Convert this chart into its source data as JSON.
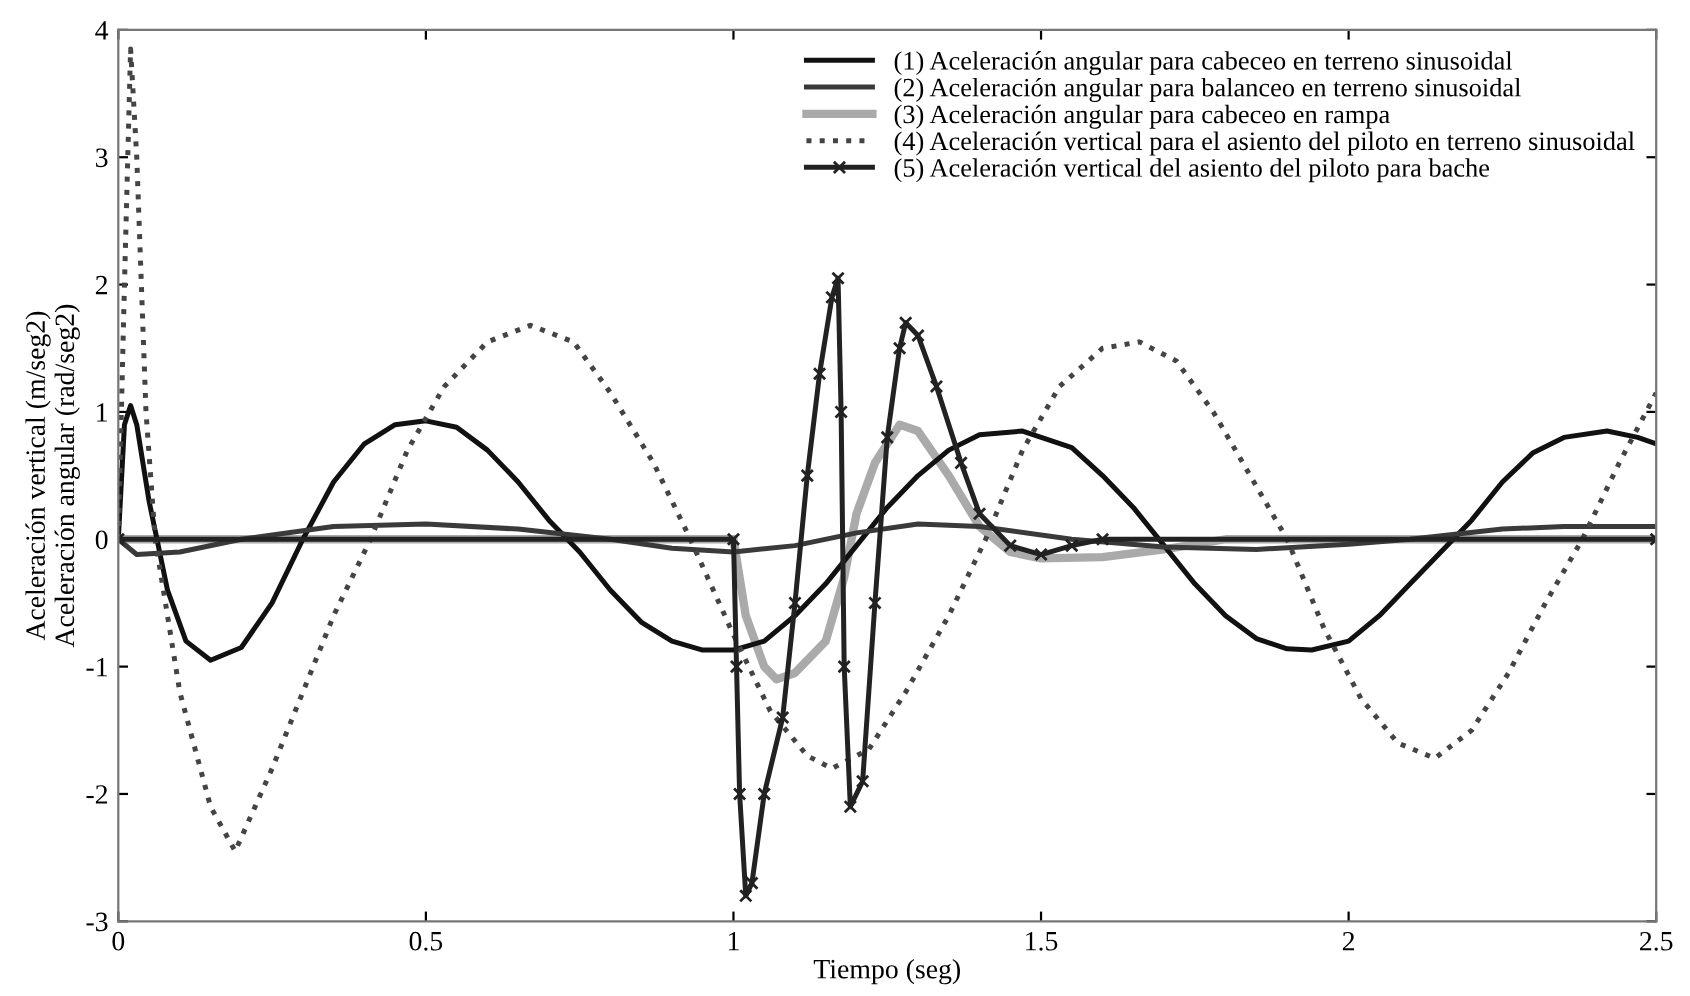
{
  "chart_data": {
    "type": "line",
    "xlabel": "Tiempo (seg)",
    "ylabel": "Aceleración vertical (m/seg2)\nAceleración angular (rad/seg2)",
    "xlim": [
      0,
      2.5
    ],
    "ylim": [
      -3,
      4
    ],
    "xticks": [
      0,
      0.5,
      1,
      1.5,
      2,
      2.5
    ],
    "yticks": [
      -3,
      -2,
      -1,
      0,
      1,
      2,
      3,
      4
    ],
    "grid": false,
    "legend": "top right",
    "series": [
      {
        "name": "(1) Aceleración angular para cabeceo en terreno sinusoidal",
        "color": "#111111",
        "line_style": "solid",
        "marker": "none",
        "x": [
          0,
          0.01,
          0.02,
          0.03,
          0.05,
          0.08,
          0.11,
          0.15,
          0.2,
          0.25,
          0.3,
          0.35,
          0.4,
          0.45,
          0.5,
          0.55,
          0.6,
          0.65,
          0.7,
          0.75,
          0.8,
          0.85,
          0.9,
          0.95,
          1.0,
          1.05,
          1.1,
          1.15,
          1.2,
          1.25,
          1.3,
          1.35,
          1.4,
          1.47,
          1.55,
          1.6,
          1.65,
          1.7,
          1.75,
          1.8,
          1.85,
          1.9,
          1.94,
          2.0,
          2.05,
          2.1,
          2.15,
          2.2,
          2.25,
          2.3,
          2.35,
          2.42,
          2.47,
          2.5
        ],
        "values": [
          0,
          0.9,
          1.05,
          0.9,
          0.3,
          -0.4,
          -0.8,
          -0.95,
          -0.85,
          -0.5,
          0,
          0.45,
          0.75,
          0.9,
          0.93,
          0.88,
          0.7,
          0.45,
          0.15,
          -0.1,
          -0.4,
          -0.65,
          -0.8,
          -0.87,
          -0.87,
          -0.8,
          -0.6,
          -0.35,
          -0.05,
          0.25,
          0.5,
          0.7,
          0.82,
          0.85,
          0.72,
          0.5,
          0.25,
          -0.05,
          -0.35,
          -0.6,
          -0.78,
          -0.86,
          -0.87,
          -0.8,
          -0.6,
          -0.35,
          -0.1,
          0.15,
          0.45,
          0.68,
          0.8,
          0.85,
          0.8,
          0.75
        ]
      },
      {
        "name": "(2) Aceleración angular para balanceo en terreno sinusoidal",
        "color": "#3a3a3a",
        "line_style": "solid",
        "marker": "none",
        "x": [
          0,
          0.03,
          0.1,
          0.2,
          0.35,
          0.5,
          0.65,
          0.8,
          0.9,
          1.0,
          1.1,
          1.2,
          1.3,
          1.4,
          1.55,
          1.7,
          1.85,
          2.0,
          2.1,
          2.25,
          2.35,
          2.5
        ],
        "values": [
          0,
          -0.12,
          -0.1,
          0,
          0.1,
          0.12,
          0.08,
          0,
          -0.07,
          -0.1,
          -0.05,
          0.05,
          0.12,
          0.1,
          0,
          -0.06,
          -0.08,
          -0.04,
          0,
          0.08,
          0.1,
          0.1
        ]
      },
      {
        "name": "(3) Aceleración angular para cabeceo en rampa",
        "color": "#aaaaaa",
        "line_style": "solid",
        "marker": "none",
        "x": [
          0,
          1.0,
          1.02,
          1.05,
          1.07,
          1.1,
          1.15,
          1.18,
          1.2,
          1.23,
          1.27,
          1.3,
          1.35,
          1.4,
          1.45,
          1.5,
          1.6,
          1.7,
          1.8,
          2.5
        ],
        "values": [
          0,
          0,
          -0.6,
          -1.0,
          -1.1,
          -1.05,
          -0.8,
          -0.3,
          0.2,
          0.6,
          0.9,
          0.85,
          0.5,
          0.1,
          -0.1,
          -0.15,
          -0.14,
          -0.08,
          0,
          0
        ]
      },
      {
        "name": "(4) Aceleración vertical para el asiento del piloto en terreno sinusoidal",
        "color": "#444444",
        "line_style": "dotted",
        "marker": "none",
        "x": [
          0,
          0.01,
          0.02,
          0.03,
          0.045,
          0.06,
          0.1,
          0.15,
          0.19,
          0.25,
          0.3,
          0.35,
          0.41,
          0.47,
          0.53,
          0.6,
          0.67,
          0.74,
          0.8,
          0.87,
          0.93,
          1.0,
          1.06,
          1.12,
          1.16,
          1.22,
          1.28,
          1.35,
          1.41,
          1.47,
          1.53,
          1.6,
          1.66,
          1.72,
          1.78,
          1.84,
          1.9,
          1.96,
          2.02,
          2.08,
          2.14,
          2.2,
          2.26,
          2.32,
          2.38,
          2.44,
          2.5
        ],
        "values": [
          0,
          2.0,
          3.85,
          3.0,
          1.0,
          0,
          -1.2,
          -2.1,
          -2.45,
          -1.8,
          -1.2,
          -0.6,
          0,
          0.7,
          1.2,
          1.55,
          1.68,
          1.55,
          1.15,
          0.6,
          0,
          -0.75,
          -1.35,
          -1.7,
          -1.8,
          -1.65,
          -1.2,
          -0.6,
          0,
          0.7,
          1.2,
          1.5,
          1.55,
          1.4,
          1.0,
          0.5,
          0,
          -0.7,
          -1.25,
          -1.6,
          -1.72,
          -1.5,
          -1.05,
          -0.5,
          0,
          0.6,
          1.15
        ]
      },
      {
        "name": "(5) Aceleración vertical del asiento del piloto para bache",
        "color": "#222222",
        "line_style": "solid",
        "marker": "cross",
        "x": [
          0,
          1.0,
          1.005,
          1.01,
          1.02,
          1.03,
          1.05,
          1.08,
          1.1,
          1.12,
          1.14,
          1.16,
          1.17,
          1.175,
          1.18,
          1.19,
          1.21,
          1.23,
          1.25,
          1.27,
          1.28,
          1.3,
          1.33,
          1.37,
          1.4,
          1.45,
          1.5,
          1.55,
          1.6,
          2.5
        ],
        "values": [
          0,
          0,
          -1.0,
          -2.0,
          -2.8,
          -2.7,
          -2.0,
          -1.4,
          -0.5,
          0.5,
          1.3,
          1.9,
          2.05,
          1.0,
          -1.0,
          -2.1,
          -1.9,
          -0.5,
          0.8,
          1.5,
          1.7,
          1.6,
          1.2,
          0.6,
          0.2,
          -0.05,
          -0.12,
          -0.05,
          0,
          0
        ]
      }
    ]
  }
}
